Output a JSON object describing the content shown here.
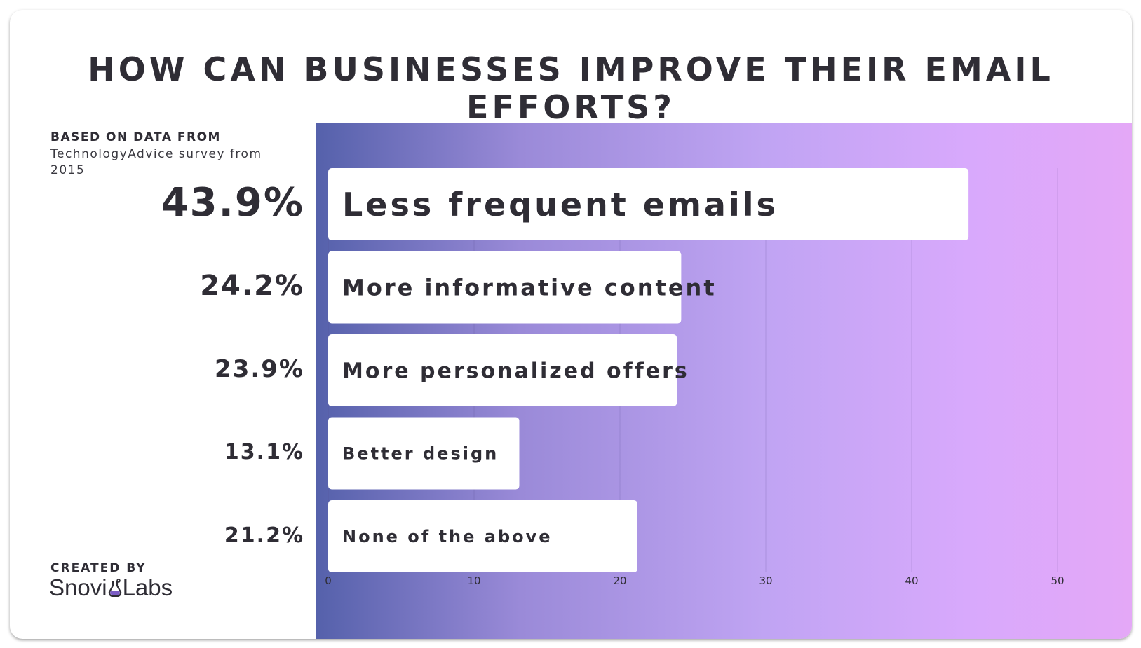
{
  "title": "HOW CAN BUSINESSES IMPROVE THEIR EMAIL EFFORTS?",
  "source": {
    "heading": "BASED ON DATA FROM",
    "text": "TechnologyAdvice survey from 2015"
  },
  "footer": {
    "created_by": "CREATED BY",
    "brand_part1": "Snovi",
    "brand_part2": "Labs",
    "brand_icon": "flask-icon"
  },
  "colors": {
    "text": "#2f2d35",
    "bar": "#ffffff",
    "gradient_start": "#5561ab",
    "gradient_end": "#e4a8f7",
    "brand_accent": "#7b5cc4"
  },
  "chart_data": {
    "type": "bar",
    "orientation": "horizontal",
    "categories": [
      "Less frequent emails",
      "More informative content",
      "More personalized offers",
      "Better design",
      "None of the above"
    ],
    "values": [
      43.9,
      24.2,
      23.9,
      13.1,
      21.2
    ],
    "value_labels": [
      "43.9%",
      "24.2%",
      "23.9%",
      "13.1%",
      "21.2%"
    ],
    "xticks": [
      0,
      10,
      20,
      30,
      40,
      50
    ],
    "xlim": [
      0,
      50
    ],
    "grid": true,
    "title": "HOW CAN BUSINESSES IMPROVE THEIR EMAIL EFFORTS?",
    "xlabel": "",
    "ylabel": ""
  }
}
